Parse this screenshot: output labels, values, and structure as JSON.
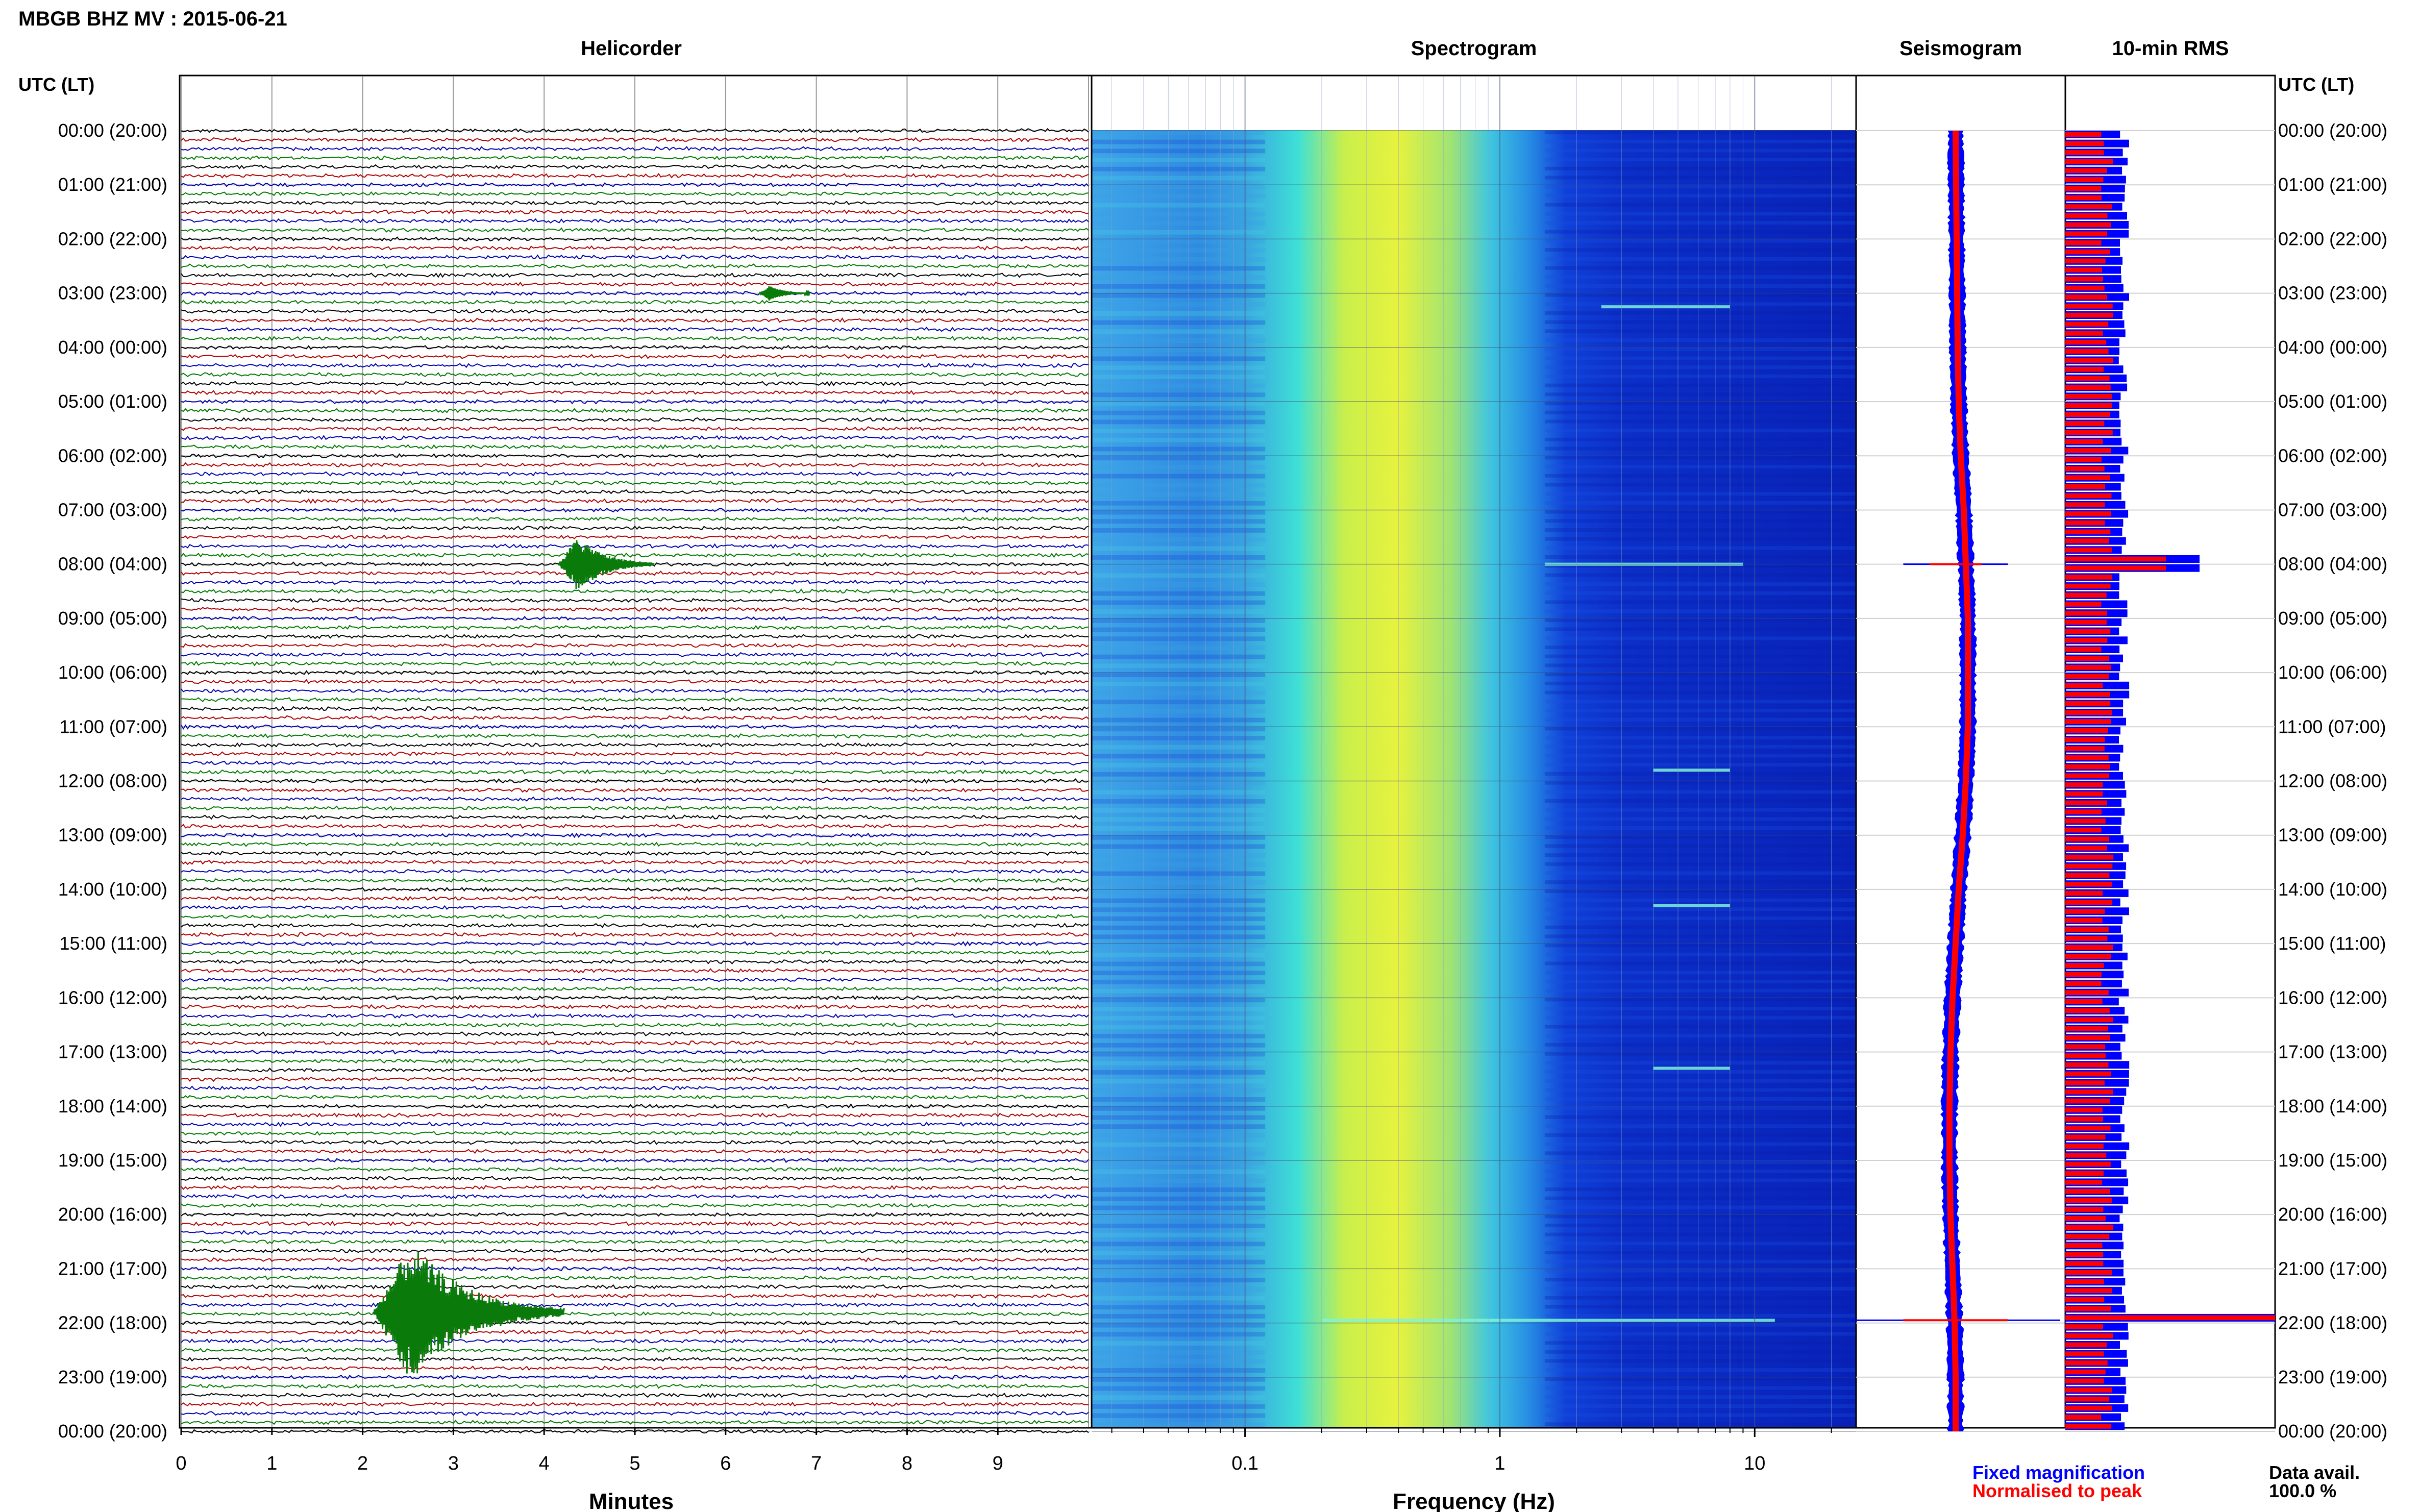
{
  "header": {
    "station_title": "MBGB BHZ MV : 2015-06-21",
    "time_axis_title_left": "UTC (LT)",
    "time_axis_title_right": "UTC (LT)"
  },
  "time_labels": [
    "00:00 (20:00)",
    "01:00 (21:00)",
    "02:00 (22:00)",
    "03:00 (23:00)",
    "04:00 (00:00)",
    "05:00 (01:00)",
    "06:00 (02:00)",
    "07:00 (03:00)",
    "08:00 (04:00)",
    "09:00 (05:00)",
    "10:00 (06:00)",
    "11:00 (07:00)",
    "12:00 (08:00)",
    "13:00 (09:00)",
    "14:00 (10:00)",
    "15:00 (11:00)",
    "16:00 (12:00)",
    "17:00 (13:00)",
    "18:00 (14:00)",
    "19:00 (15:00)",
    "20:00 (16:00)",
    "21:00 (17:00)",
    "22:00 (18:00)",
    "23:00 (19:00)",
    "00:00 (20:00)"
  ],
  "legend": {
    "fixed": "Fixed magnification",
    "normalised": "Normalised to peak"
  },
  "footer": {
    "data_avail_label": "Data avail.",
    "data_avail_value": "100.0 %"
  },
  "colors": {
    "trace_cycle": [
      "#000000",
      "#b00000",
      "#0000b0",
      "#007a00"
    ],
    "fixed": "#0000ff",
    "normalised": "#ff0000"
  },
  "chart_data": [
    {
      "type": "line",
      "title": "Helicorder",
      "xlabel": "Minutes",
      "xticks": [
        "0",
        "1",
        "2",
        "3",
        "4",
        "5",
        "6",
        "7",
        "8",
        "9"
      ],
      "xlim": [
        0,
        10
      ],
      "rows": 144,
      "row_minutes": 10,
      "grid": true,
      "events": [
        {
          "utc_hour": 3.0,
          "minute": 6.5,
          "amplitude": 0.4
        },
        {
          "utc_hour": 8.0,
          "minute": 4.4,
          "amplitude": 2.2
        },
        {
          "utc_hour": 21.8,
          "minute": 2.6,
          "amplitude": 6.0
        }
      ]
    },
    {
      "type": "heatmap",
      "title": "Spectrogram",
      "xlabel": "Frequency (Hz)",
      "xscale": "log",
      "xlim": [
        0.025,
        25
      ],
      "xticks": [
        "0.1",
        "1",
        "10"
      ],
      "colormap": "blue-cyan-yellow",
      "peak_band_hz": [
        0.25,
        0.9
      ],
      "transients": [
        {
          "utc_hour": 3.25,
          "f_min": 2.5,
          "f_max": 8
        },
        {
          "utc_hour": 8.0,
          "f_min": 1.5,
          "f_max": 9
        },
        {
          "utc_hour": 11.8,
          "f_min": 4,
          "f_max": 8
        },
        {
          "utc_hour": 14.3,
          "f_min": 4,
          "f_max": 8
        },
        {
          "utc_hour": 17.3,
          "f_min": 4,
          "f_max": 8
        },
        {
          "utc_hour": 21.95,
          "f_min": 0.2,
          "f_max": 12
        }
      ]
    },
    {
      "type": "line",
      "title": "Seismogram",
      "series": [
        {
          "name": "Fixed magnification",
          "color": "#0000ff"
        },
        {
          "name": "Normalised to peak",
          "color": "#ff0000"
        }
      ],
      "baseline_by_hour": [
        0.0,
        0.05,
        0.1,
        0.15,
        0.2,
        0.3,
        0.5,
        0.8,
        1.0,
        1.2,
        1.2,
        1.2,
        1.0,
        0.7,
        0.3,
        0.0,
        -0.3,
        -0.5,
        -0.6,
        -0.6,
        -0.5,
        -0.3,
        -0.1,
        0.0,
        0.0
      ],
      "spikes": [
        {
          "utc_hour": 8.0,
          "extent": 0.25
        },
        {
          "utc_hour": 21.95,
          "extent": 0.5
        }
      ]
    },
    {
      "type": "bar",
      "title": "10-min RMS",
      "orientation": "horizontal",
      "bins": 144,
      "bin_minutes": 10,
      "series": [
        {
          "name": "Fixed magnification",
          "color": "#0000ff",
          "typical": 0.28
        },
        {
          "name": "Normalised to peak",
          "color": "#ff0000",
          "typical": 0.2
        }
      ],
      "peaks": [
        {
          "utc_hour": 8.0,
          "fixed": 0.64,
          "normalised": 0.48
        },
        {
          "utc_hour": 21.95,
          "fixed": 1.0,
          "normalised": 1.0
        }
      ]
    }
  ]
}
